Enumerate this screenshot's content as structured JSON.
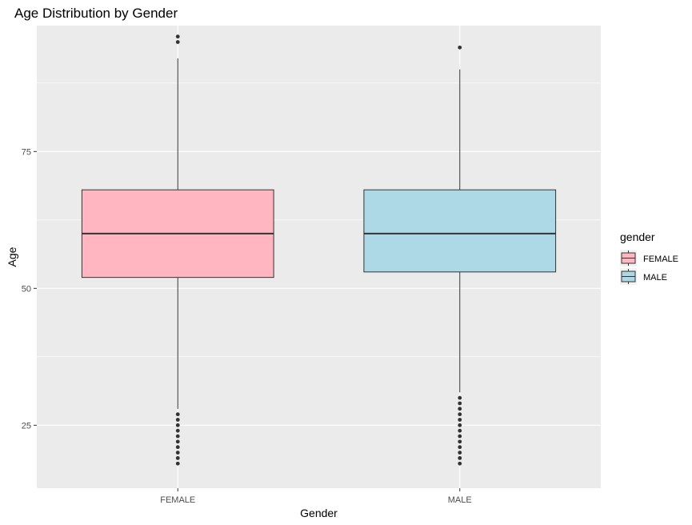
{
  "chart_data": {
    "type": "boxplot",
    "title": "Age Distribution by Gender",
    "xlabel": "Gender",
    "ylabel": "Age",
    "categories": [
      "FEMALE",
      "MALE"
    ],
    "ylim": [
      13.5,
      98
    ],
    "yticks": [
      25,
      50,
      75
    ],
    "grid": true,
    "legend": {
      "title": "gender",
      "position": "right",
      "entries": [
        "FEMALE",
        "MALE"
      ]
    },
    "series": [
      {
        "category": "FEMALE",
        "color": "#FFB6C1",
        "whisker_low": 28,
        "q1": 52,
        "median": 60,
        "q3": 68,
        "whisker_high": 92,
        "outliers": [
          18,
          19,
          20,
          21,
          22,
          23,
          24,
          25,
          26,
          27,
          95,
          96
        ]
      },
      {
        "category": "MALE",
        "color": "#ADD8E6",
        "whisker_low": 31,
        "q1": 53,
        "median": 60,
        "q3": 68,
        "whisker_high": 90,
        "outliers": [
          18,
          19,
          20,
          21,
          22,
          23,
          24,
          25,
          26,
          27,
          28,
          29,
          30,
          94
        ]
      }
    ],
    "panel_color": "#EBEBEB",
    "grid_color": "#FFFFFF",
    "outline_color": "#333333"
  }
}
